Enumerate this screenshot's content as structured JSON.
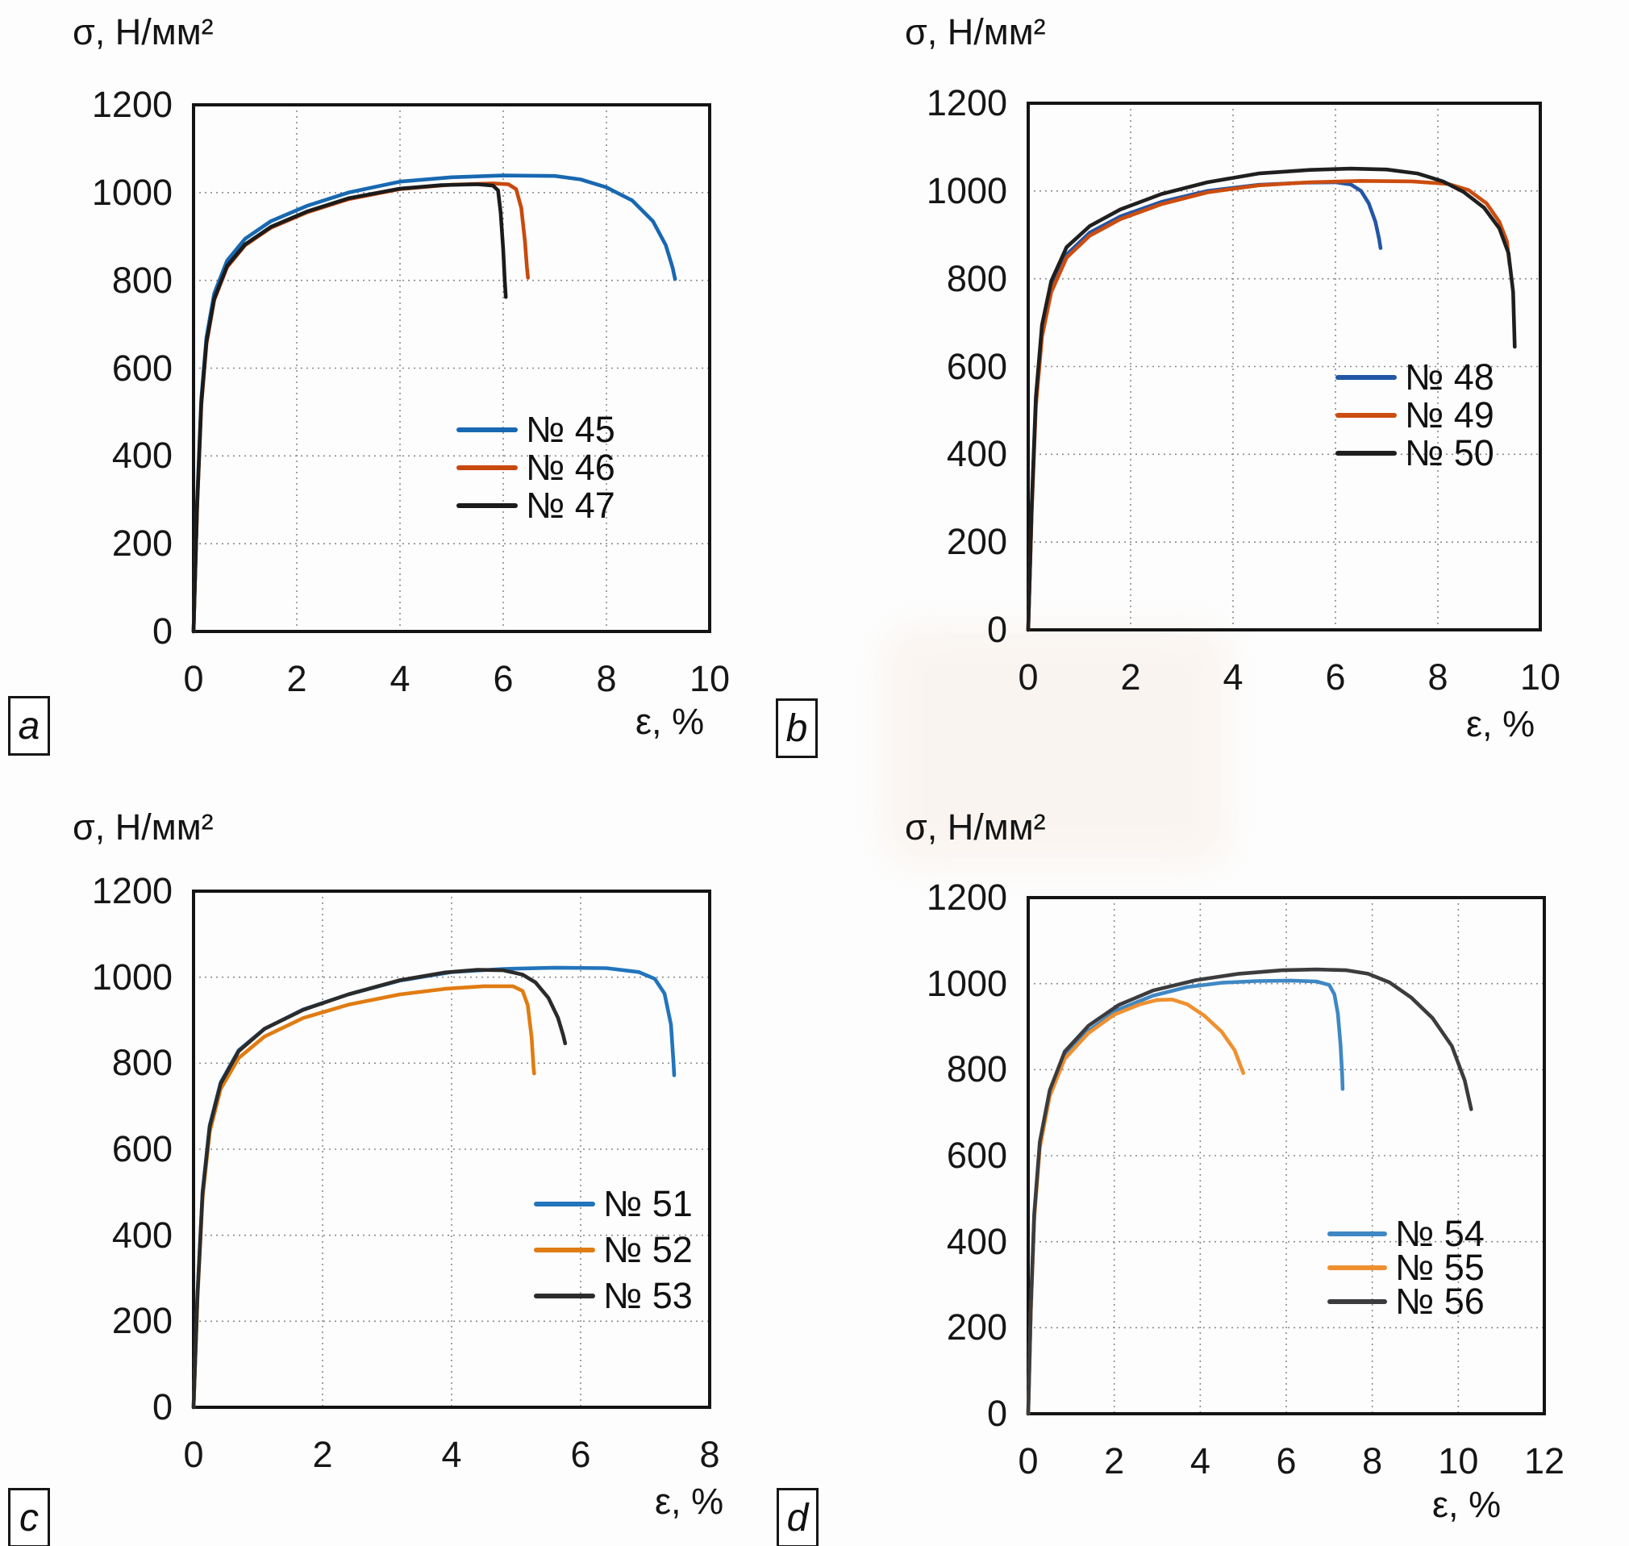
{
  "chart_data": [
    {
      "panel_label": "a",
      "type": "line",
      "ylabel": "σ, Н/мм²",
      "xlabel": "ε, %",
      "xlim": [
        0,
        10
      ],
      "ylim": [
        0,
        1200
      ],
      "x_ticks": [
        0,
        2,
        4,
        6,
        8,
        10
      ],
      "y_ticks": [
        0,
        200,
        400,
        600,
        800,
        1000,
        1200
      ],
      "grid": true,
      "legend_position": "inside lower right",
      "series": [
        {
          "name": "№ 45",
          "color": "#1868b2",
          "points": [
            [
              0,
              0
            ],
            [
              0.07,
              300
            ],
            [
              0.15,
              530
            ],
            [
              0.25,
              670
            ],
            [
              0.4,
              770
            ],
            [
              0.65,
              845
            ],
            [
              1.0,
              895
            ],
            [
              1.5,
              935
            ],
            [
              2.2,
              970
            ],
            [
              3.0,
              1000
            ],
            [
              4.0,
              1025
            ],
            [
              5.0,
              1035
            ],
            [
              6.0,
              1039
            ],
            [
              7.0,
              1038
            ],
            [
              7.5,
              1030
            ],
            [
              8.0,
              1012
            ],
            [
              8.5,
              982
            ],
            [
              8.9,
              935
            ],
            [
              9.15,
              880
            ],
            [
              9.28,
              830
            ],
            [
              9.33,
              803
            ]
          ]
        },
        {
          "name": "№ 46",
          "color": "#c8490e",
          "points": [
            [
              0,
              0
            ],
            [
              0.07,
              285
            ],
            [
              0.15,
              515
            ],
            [
              0.25,
              655
            ],
            [
              0.4,
              755
            ],
            [
              0.65,
              830
            ],
            [
              1.0,
              880
            ],
            [
              1.5,
              920
            ],
            [
              2.2,
              955
            ],
            [
              3.0,
              985
            ],
            [
              4.0,
              1008
            ],
            [
              5.0,
              1018
            ],
            [
              5.8,
              1021
            ],
            [
              6.1,
              1019
            ],
            [
              6.25,
              1008
            ],
            [
              6.35,
              965
            ],
            [
              6.42,
              890
            ],
            [
              6.46,
              830
            ],
            [
              6.48,
              806
            ]
          ]
        },
        {
          "name": "№ 47",
          "color": "#1b1b1b",
          "points": [
            [
              0,
              0
            ],
            [
              0.07,
              290
            ],
            [
              0.15,
              520
            ],
            [
              0.25,
              660
            ],
            [
              0.4,
              758
            ],
            [
              0.65,
              833
            ],
            [
              1.0,
              882
            ],
            [
              1.5,
              922
            ],
            [
              2.2,
              957
            ],
            [
              3.0,
              987
            ],
            [
              4.0,
              1009
            ],
            [
              4.8,
              1017
            ],
            [
              5.5,
              1019
            ],
            [
              5.8,
              1016
            ],
            [
              5.9,
              1005
            ],
            [
              5.95,
              955
            ],
            [
              6.0,
              870
            ],
            [
              6.03,
              800
            ],
            [
              6.05,
              762
            ]
          ]
        }
      ]
    },
    {
      "panel_label": "b",
      "type": "line",
      "ylabel": "σ, Н/мм²",
      "xlabel": "ε, %",
      "xlim": [
        0,
        10
      ],
      "ylim": [
        0,
        1200
      ],
      "x_ticks": [
        0,
        2,
        4,
        6,
        8,
        10
      ],
      "y_ticks": [
        0,
        200,
        400,
        600,
        800,
        1000,
        1200
      ],
      "grid": true,
      "legend_position": "inside middle right",
      "series": [
        {
          "name": "№ 48",
          "color": "#2356a6",
          "points": [
            [
              0,
              0
            ],
            [
              0.07,
              280
            ],
            [
              0.15,
              520
            ],
            [
              0.27,
              680
            ],
            [
              0.45,
              780
            ],
            [
              0.75,
              855
            ],
            [
              1.2,
              905
            ],
            [
              1.8,
              942
            ],
            [
              2.6,
              975
            ],
            [
              3.5,
              1000
            ],
            [
              4.5,
              1014
            ],
            [
              5.4,
              1019
            ],
            [
              6.0,
              1020
            ],
            [
              6.3,
              1015
            ],
            [
              6.5,
              1000
            ],
            [
              6.65,
              972
            ],
            [
              6.78,
              930
            ],
            [
              6.85,
              892
            ],
            [
              6.88,
              870
            ]
          ]
        },
        {
          "name": "№ 49",
          "color": "#cc4d0f",
          "points": [
            [
              0,
              0
            ],
            [
              0.07,
              270
            ],
            [
              0.15,
              510
            ],
            [
              0.27,
              668
            ],
            [
              0.45,
              770
            ],
            [
              0.75,
              848
            ],
            [
              1.2,
              898
            ],
            [
              1.8,
              936
            ],
            [
              2.6,
              970
            ],
            [
              3.5,
              997
            ],
            [
              4.5,
              1013
            ],
            [
              5.5,
              1020
            ],
            [
              6.5,
              1023
            ],
            [
              7.5,
              1022
            ],
            [
              8.2,
              1016
            ],
            [
              8.6,
              1002
            ],
            [
              8.95,
              972
            ],
            [
              9.2,
              930
            ],
            [
              9.35,
              885
            ],
            [
              9.4,
              832
            ]
          ]
        },
        {
          "name": "№ 50",
          "color": "#1f1f1f",
          "points": [
            [
              0,
              0
            ],
            [
              0.07,
              285
            ],
            [
              0.15,
              530
            ],
            [
              0.27,
              695
            ],
            [
              0.45,
              795
            ],
            [
              0.75,
              872
            ],
            [
              1.2,
              920
            ],
            [
              1.8,
              958
            ],
            [
              2.6,
              993
            ],
            [
              3.5,
              1020
            ],
            [
              4.5,
              1040
            ],
            [
              5.5,
              1048
            ],
            [
              6.3,
              1051
            ],
            [
              7.0,
              1049
            ],
            [
              7.6,
              1040
            ],
            [
              8.1,
              1022
            ],
            [
              8.5,
              998
            ],
            [
              8.9,
              962
            ],
            [
              9.2,
              915
            ],
            [
              9.38,
              858
            ],
            [
              9.47,
              770
            ],
            [
              9.5,
              645
            ]
          ]
        }
      ]
    },
    {
      "panel_label": "c",
      "type": "line",
      "ylabel": "σ, Н/мм²",
      "xlabel": "ε, %",
      "xlim": [
        0,
        8
      ],
      "ylim": [
        0,
        1200
      ],
      "x_ticks": [
        0,
        2,
        4,
        6,
        8
      ],
      "y_ticks": [
        0,
        200,
        400,
        600,
        800,
        1000,
        1200
      ],
      "grid": true,
      "legend_position": "inside lower right",
      "series": [
        {
          "name": "№ 51",
          "color": "#2274bc",
          "points": [
            [
              0,
              0
            ],
            [
              0.06,
              260
            ],
            [
              0.14,
              500
            ],
            [
              0.25,
              655
            ],
            [
              0.42,
              755
            ],
            [
              0.7,
              830
            ],
            [
              1.1,
              880
            ],
            [
              1.7,
              925
            ],
            [
              2.4,
              960
            ],
            [
              3.2,
              992
            ],
            [
              4.0,
              1012
            ],
            [
              4.8,
              1019
            ],
            [
              5.6,
              1022
            ],
            [
              6.4,
              1021
            ],
            [
              6.9,
              1012
            ],
            [
              7.15,
              996
            ],
            [
              7.3,
              962
            ],
            [
              7.4,
              890
            ],
            [
              7.44,
              800
            ],
            [
              7.45,
              772
            ]
          ]
        },
        {
          "name": "№ 52",
          "color": "#e07c12",
          "points": [
            [
              0,
              0
            ],
            [
              0.06,
              250
            ],
            [
              0.14,
              488
            ],
            [
              0.25,
              640
            ],
            [
              0.42,
              740
            ],
            [
              0.7,
              812
            ],
            [
              1.1,
              862
            ],
            [
              1.7,
              905
            ],
            [
              2.4,
              936
            ],
            [
              3.2,
              960
            ],
            [
              3.9,
              973
            ],
            [
              4.5,
              979
            ],
            [
              4.95,
              979
            ],
            [
              5.1,
              968
            ],
            [
              5.18,
              935
            ],
            [
              5.24,
              860
            ],
            [
              5.27,
              790
            ],
            [
              5.28,
              776
            ]
          ]
        },
        {
          "name": "№ 53",
          "color": "#2b2b2b",
          "points": [
            [
              0,
              0
            ],
            [
              0.06,
              258
            ],
            [
              0.14,
              498
            ],
            [
              0.25,
              652
            ],
            [
              0.42,
              752
            ],
            [
              0.7,
              828
            ],
            [
              1.1,
              880
            ],
            [
              1.7,
              924
            ],
            [
              2.4,
              960
            ],
            [
              3.2,
              993
            ],
            [
              3.9,
              1011
            ],
            [
              4.4,
              1017
            ],
            [
              4.8,
              1016
            ],
            [
              5.1,
              1006
            ],
            [
              5.3,
              988
            ],
            [
              5.5,
              952
            ],
            [
              5.65,
              905
            ],
            [
              5.73,
              865
            ],
            [
              5.76,
              846
            ]
          ]
        }
      ]
    },
    {
      "panel_label": "d",
      "type": "line",
      "ylabel": "σ, Н/мм²",
      "xlabel": "ε, %",
      "xlim": [
        0,
        12
      ],
      "ylim": [
        0,
        1200
      ],
      "x_ticks": [
        0,
        2,
        4,
        6,
        8,
        10,
        12
      ],
      "y_ticks": [
        0,
        200,
        400,
        600,
        800,
        1000,
        1200
      ],
      "grid": true,
      "legend_position": "inside middle right",
      "series": [
        {
          "name": "№ 54",
          "color": "#3f88c4",
          "points": [
            [
              0,
              0
            ],
            [
              0.06,
              240
            ],
            [
              0.14,
              460
            ],
            [
              0.27,
              625
            ],
            [
              0.5,
              745
            ],
            [
              0.85,
              830
            ],
            [
              1.4,
              890
            ],
            [
              2.1,
              940
            ],
            [
              2.9,
              972
            ],
            [
              3.7,
              992
            ],
            [
              4.5,
              1002
            ],
            [
              5.3,
              1006
            ],
            [
              6.1,
              1007
            ],
            [
              6.7,
              1005
            ],
            [
              7.0,
              997
            ],
            [
              7.12,
              975
            ],
            [
              7.2,
              930
            ],
            [
              7.26,
              860
            ],
            [
              7.3,
              790
            ],
            [
              7.31,
              755
            ]
          ]
        },
        {
          "name": "№ 55",
          "color": "#ef9030",
          "points": [
            [
              0,
              0
            ],
            [
              0.06,
              235
            ],
            [
              0.14,
              455
            ],
            [
              0.27,
              618
            ],
            [
              0.5,
              738
            ],
            [
              0.85,
              825
            ],
            [
              1.4,
              885
            ],
            [
              2.0,
              928
            ],
            [
              2.6,
              952
            ],
            [
              3.0,
              962
            ],
            [
              3.35,
              963
            ],
            [
              3.7,
              952
            ],
            [
              4.1,
              925
            ],
            [
              4.5,
              888
            ],
            [
              4.8,
              845
            ],
            [
              5.0,
              792
            ]
          ]
        },
        {
          "name": "№ 56",
          "color": "#3c3c3e",
          "points": [
            [
              0,
              0
            ],
            [
              0.06,
              245
            ],
            [
              0.14,
              465
            ],
            [
              0.27,
              632
            ],
            [
              0.5,
              752
            ],
            [
              0.85,
              842
            ],
            [
              1.4,
              902
            ],
            [
              2.1,
              950
            ],
            [
              2.9,
              984
            ],
            [
              3.9,
              1008
            ],
            [
              4.9,
              1023
            ],
            [
              5.9,
              1031
            ],
            [
              6.7,
              1033
            ],
            [
              7.4,
              1031
            ],
            [
              7.9,
              1023
            ],
            [
              8.4,
              1003
            ],
            [
              8.9,
              968
            ],
            [
              9.4,
              920
            ],
            [
              9.85,
              855
            ],
            [
              10.15,
              775
            ],
            [
              10.3,
              708
            ]
          ]
        }
      ]
    }
  ]
}
